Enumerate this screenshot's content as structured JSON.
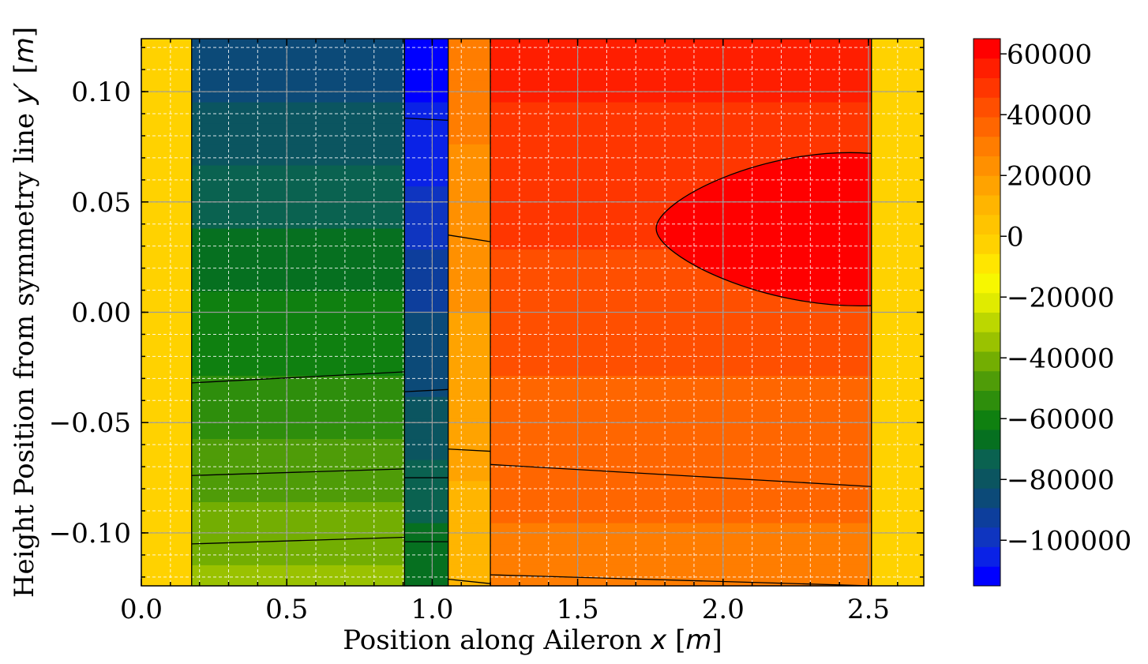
{
  "chart_data": {
    "type": "heatmap",
    "title": "",
    "xlabel": "Position along Aileron $x$ [$m$]",
    "xlabel_parts": [
      "Position along Aileron ",
      "x",
      " [",
      "m",
      "]"
    ],
    "ylabel": "Height Position from symmetry line $y'$ [$m$]",
    "ylabel_parts": [
      "Height Position from symmetry line ",
      "y′",
      " [",
      "m",
      "]"
    ],
    "xlim": [
      0.0,
      2.69
    ],
    "ylim": [
      -0.124,
      0.124
    ],
    "xticks": [
      0.0,
      0.5,
      1.0,
      1.5,
      2.0,
      2.5
    ],
    "xtick_labels": [
      "0.0",
      "0.5",
      "1.0",
      "1.5",
      "2.0",
      "2.5"
    ],
    "yticks": [
      0.1,
      0.05,
      0.0,
      -0.05,
      -0.1
    ],
    "ytick_labels": [
      "0.10",
      "0.05",
      "0.00",
      "−0.05",
      "−0.10"
    ],
    "grid": true,
    "colorbar": {
      "range": [
        -115000,
        65000
      ],
      "ticks": [
        60000,
        40000,
        20000,
        0,
        -20000,
        -40000,
        -60000,
        -80000,
        -100000
      ],
      "tick_labels": [
        "60000",
        "40000",
        "20000",
        "0",
        "−20000",
        "−40000",
        "−60000",
        "−80000",
        "−100000"
      ],
      "colors": [
        "#0000ff",
        "#0a22e6",
        "#0f35c0",
        "#0d3e9c",
        "#0c4a78",
        "#0b5560",
        "#0a6250",
        "#067020",
        "#0f8010",
        "#2e8e0c",
        "#4f9c08",
        "#73ae02",
        "#9ac200",
        "#bcd700",
        "#e0eb00",
        "#f7f700",
        "#ffe600",
        "#ffd200",
        "#ffc400",
        "#ffb500",
        "#ffa300",
        "#ff9000",
        "#ff7d00",
        "#ff6600",
        "#ff4f00",
        "#ff3600",
        "#ff1e00",
        "#ff0000"
      ]
    },
    "regions": [
      {
        "name": "left-edge",
        "x": [
          0.0,
          0.173
        ],
        "value_bottom": 0,
        "value_top": 0
      },
      {
        "name": "left-skin",
        "x": [
          0.173,
          0.905
        ],
        "value_bottom": -35000,
        "value_top": -90000
      },
      {
        "name": "middle-spar",
        "x": [
          0.905,
          1.055
        ],
        "value_bottom": -65000,
        "value_top": -115000
      },
      {
        "name": "middle-right-low",
        "x": [
          1.055,
          1.2
        ],
        "value_bottom": 10000,
        "value_top": 30000
      },
      {
        "name": "right-skin",
        "x": [
          1.2,
          2.51
        ],
        "value_bottom": 30000,
        "value_top": 55000
      },
      {
        "name": "right-edge",
        "x": [
          2.51,
          2.69
        ],
        "value_bottom": 0,
        "value_top": 0
      }
    ],
    "contour_lines": [
      {
        "x": [
          0.173,
          0.905
        ],
        "y": [
          -0.032,
          -0.027
        ]
      },
      {
        "x": [
          0.173,
          0.905
        ],
        "y": [
          -0.074,
          -0.071
        ]
      },
      {
        "x": [
          0.173,
          0.905
        ],
        "y": [
          -0.105,
          -0.102
        ]
      },
      {
        "x": [
          0.905,
          1.055
        ],
        "y": [
          0.088,
          0.087
        ]
      },
      {
        "x": [
          0.905,
          1.055
        ],
        "y": [
          -0.036,
          -0.035
        ]
      },
      {
        "x": [
          0.905,
          1.055
        ],
        "y": [
          -0.075,
          -0.075
        ]
      },
      {
        "x": [
          0.905,
          1.055
        ],
        "y": [
          -0.104,
          -0.104
        ]
      },
      {
        "x": [
          1.055,
          1.2
        ],
        "y": [
          0.035,
          0.032
        ]
      },
      {
        "x": [
          1.055,
          1.2
        ],
        "y": [
          -0.062,
          -0.063
        ]
      },
      {
        "x": [
          1.055,
          1.2
        ],
        "y": [
          -0.121,
          -0.123
        ]
      },
      {
        "x": [
          1.2,
          2.51
        ],
        "y": [
          -0.069,
          -0.079
        ]
      },
      {
        "x": [
          1.2,
          2.51
        ],
        "y": [
          -0.119,
          -0.124
        ]
      }
    ],
    "contour_ellipse": {
      "x_apex": 1.77,
      "y_center": 0.038,
      "x_end": 2.51,
      "y_top_end": 0.072,
      "y_bottom_end": 0.003
    }
  }
}
